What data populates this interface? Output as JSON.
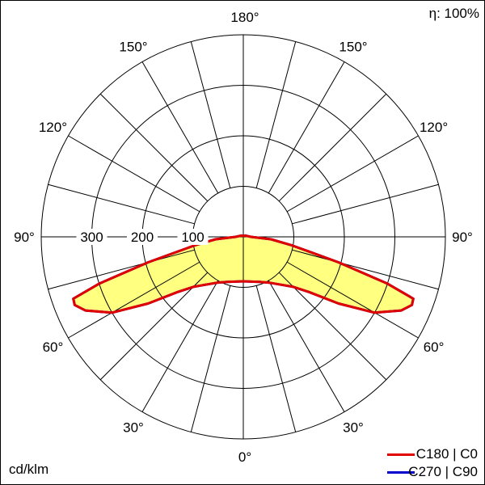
{
  "chart_data": {
    "type": "polar",
    "efficiency_label": "η: 100%",
    "unit_label": "cd/klm",
    "radial_ticks": [
      100,
      200,
      300
    ],
    "radial_max": 400,
    "angle_labels": [
      {
        "angle": 180,
        "text": "180°"
      },
      {
        "angle": 150,
        "text": "150°"
      },
      {
        "angle": 120,
        "text": "120°"
      },
      {
        "angle": 90,
        "text": "90°"
      },
      {
        "angle": 60,
        "text": "60°"
      },
      {
        "angle": 30,
        "text": "30°"
      },
      {
        "angle": 0,
        "text": "0°"
      }
    ],
    "grid_angle_step": 15,
    "gamma": [
      0,
      10,
      20,
      30,
      40,
      45,
      50,
      55,
      60,
      65,
      68,
      70,
      72,
      75,
      80,
      85,
      90,
      120,
      180
    ],
    "series": [
      {
        "name": "C270 | C90",
        "color": "#0000cc",
        "values": [
          88,
          90,
          95,
          105,
          125,
          140,
          170,
          230,
          300,
          345,
          360,
          358,
          300,
          195,
          98,
          55,
          15,
          5,
          2
        ]
      },
      {
        "name": "C180 | C0",
        "color": "#e00000",
        "values": [
          88,
          90,
          95,
          105,
          125,
          140,
          170,
          230,
          300,
          345,
          360,
          358,
          300,
          195,
          98,
          55,
          15,
          5,
          2
        ]
      }
    ],
    "fill_color": "#ffff80",
    "legend_position": "bottom-right"
  }
}
